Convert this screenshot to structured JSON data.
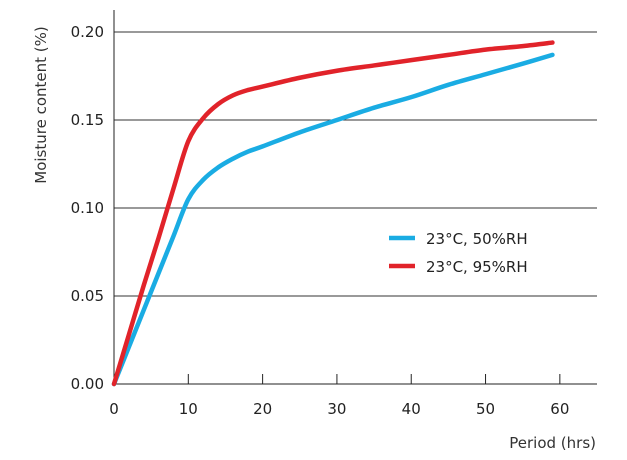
{
  "chart_data": {
    "type": "line",
    "xlabel": "Period (hrs)",
    "ylabel": "Moisture content (%)",
    "xlim": [
      0,
      65
    ],
    "ylim": [
      0,
      0.2
    ],
    "x_ticks": [
      "0",
      "10",
      "20",
      "30",
      "40",
      "50",
      "60"
    ],
    "y_ticks": [
      "0.00",
      "0.05",
      "0.10",
      "0.15",
      "0.20"
    ],
    "grid": "horizontal",
    "legend_position": "center-right",
    "series": [
      {
        "name": "23°C, 50%RH",
        "color": "#1aace3",
        "x": [
          0,
          2,
          4,
          6,
          8,
          10,
          12,
          14,
          16,
          18,
          20,
          25,
          30,
          35,
          40,
          45,
          50,
          55,
          59
        ],
        "y": [
          0,
          0.021,
          0.042,
          0.063,
          0.084,
          0.105,
          0.116,
          0.123,
          0.128,
          0.132,
          0.135,
          0.143,
          0.15,
          0.157,
          0.163,
          0.17,
          0.176,
          0.182,
          0.187
        ]
      },
      {
        "name": "23°C, 95%RH",
        "color": "#e1232a",
        "x": [
          0,
          2,
          4,
          6,
          8,
          10,
          12,
          14,
          16,
          18,
          20,
          25,
          30,
          35,
          40,
          45,
          50,
          55,
          59
        ],
        "y": [
          0,
          0.028,
          0.056,
          0.083,
          0.111,
          0.138,
          0.151,
          0.159,
          0.164,
          0.167,
          0.169,
          0.174,
          0.178,
          0.181,
          0.184,
          0.187,
          0.19,
          0.192,
          0.194
        ]
      }
    ]
  }
}
